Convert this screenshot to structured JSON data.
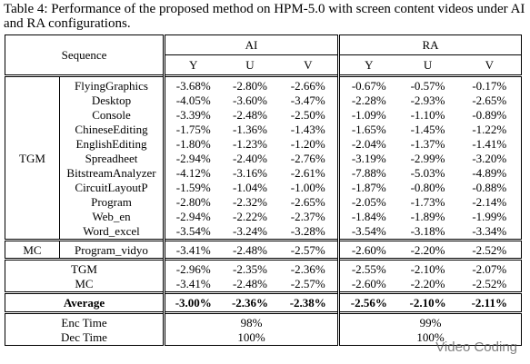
{
  "caption": "Table 4: Performance of the proposed method on HPM-5.0 with screen content videos under AI and RA configurations.",
  "header": {
    "sequence": "Sequence",
    "groups": [
      "AI",
      "RA"
    ],
    "components": [
      "Y",
      "U",
      "V",
      "Y",
      "U",
      "V"
    ]
  },
  "groups": [
    {
      "name": "TGM",
      "rows": [
        {
          "sequence": "FlyingGraphics",
          "values": [
            "-3.68%",
            "-2.80%",
            "-2.66%",
            "-0.67%",
            "-0.57%",
            "-0.17%"
          ]
        },
        {
          "sequence": "Desktop",
          "values": [
            "-4.05%",
            "-3.60%",
            "-3.47%",
            "-2.28%",
            "-2.93%",
            "-2.65%"
          ]
        },
        {
          "sequence": "Console",
          "values": [
            "-3.39%",
            "-2.48%",
            "-2.50%",
            "-1.09%",
            "-1.10%",
            "-0.89%"
          ]
        },
        {
          "sequence": "ChineseEditing",
          "values": [
            "-1.75%",
            "-1.36%",
            "-1.43%",
            "-1.65%",
            "-1.45%",
            "-1.22%"
          ]
        },
        {
          "sequence": "EnglishEditing",
          "values": [
            "-1.80%",
            "-1.23%",
            "-1.20%",
            "-2.04%",
            "-1.37%",
            "-1.41%"
          ]
        },
        {
          "sequence": "Spreadheet",
          "values": [
            "-2.94%",
            "-2.40%",
            "-2.76%",
            "-3.19%",
            "-2.99%",
            "-3.20%"
          ]
        },
        {
          "sequence": "BitstreamAnalyzer",
          "values": [
            "-4.12%",
            "-3.16%",
            "-2.61%",
            "-7.88%",
            "-5.03%",
            "-4.89%"
          ]
        },
        {
          "sequence": "CircuitLayoutP",
          "values": [
            "-1.59%",
            "-1.04%",
            "-1.00%",
            "-1.87%",
            "-0.80%",
            "-0.88%"
          ]
        },
        {
          "sequence": "Program",
          "values": [
            "-2.80%",
            "-2.32%",
            "-2.65%",
            "-2.05%",
            "-1.73%",
            "-2.14%"
          ]
        },
        {
          "sequence": "Web_en",
          "values": [
            "-2.94%",
            "-2.22%",
            "-2.37%",
            "-1.84%",
            "-1.89%",
            "-1.99%"
          ]
        },
        {
          "sequence": "Word_excel",
          "values": [
            "-3.54%",
            "-3.24%",
            "-3.28%",
            "-3.54%",
            "-3.18%",
            "-3.34%"
          ]
        }
      ]
    },
    {
      "name": "MC",
      "rows": [
        {
          "sequence": "Program_vidyo",
          "values": [
            "-3.41%",
            "-2.48%",
            "-2.57%",
            "-2.60%",
            "-2.20%",
            "-2.52%"
          ]
        }
      ]
    }
  ],
  "summary": [
    {
      "name": "TGM",
      "values": [
        "-2.96%",
        "-2.35%",
        "-2.36%",
        "-2.55%",
        "-2.10%",
        "-2.07%"
      ]
    },
    {
      "name": "MC",
      "values": [
        "-3.41%",
        "-2.48%",
        "-2.57%",
        "-2.60%",
        "-2.20%",
        "-2.52%"
      ]
    }
  ],
  "average": {
    "label": "Average",
    "values": [
      "-3.00%",
      "-2.36%",
      "-2.38%",
      "-2.56%",
      "-2.10%",
      "-2.11%"
    ]
  },
  "times": [
    {
      "label": "Enc Time",
      "values": [
        "98%",
        "99%"
      ]
    },
    {
      "label": "Dec Time",
      "values": [
        "100%",
        "100%"
      ]
    }
  ],
  "watermark": "Video Coding"
}
